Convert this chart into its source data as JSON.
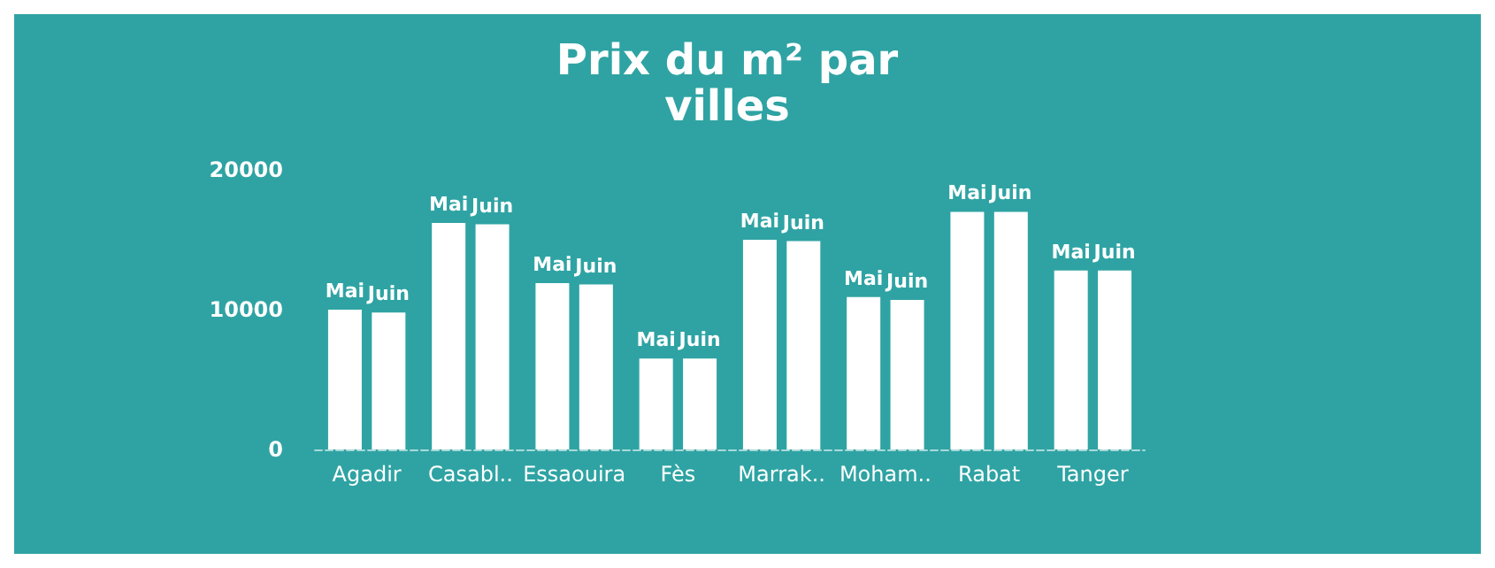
{
  "chart_data": {
    "type": "bar",
    "title": "Prix du m² par\nvilles",
    "categories": [
      "Agadir",
      "Casabl..",
      "Essaouira",
      "Fès",
      "Marrak..",
      "Moham..",
      "Rabat",
      "Tanger"
    ],
    "series": [
      {
        "name": "Mai",
        "color": "#ffffff",
        "values": [
          10000,
          16200,
          11900,
          6500,
          15000,
          10900,
          17000,
          12800
        ]
      },
      {
        "name": "Juin",
        "color": "#ffffff",
        "values": [
          9800,
          16100,
          11800,
          6500,
          14900,
          10700,
          17000,
          12800
        ]
      }
    ],
    "ylim": [
      0,
      20000
    ],
    "yticks": [
      0,
      10000,
      20000
    ],
    "grid": false,
    "legend": false
  }
}
